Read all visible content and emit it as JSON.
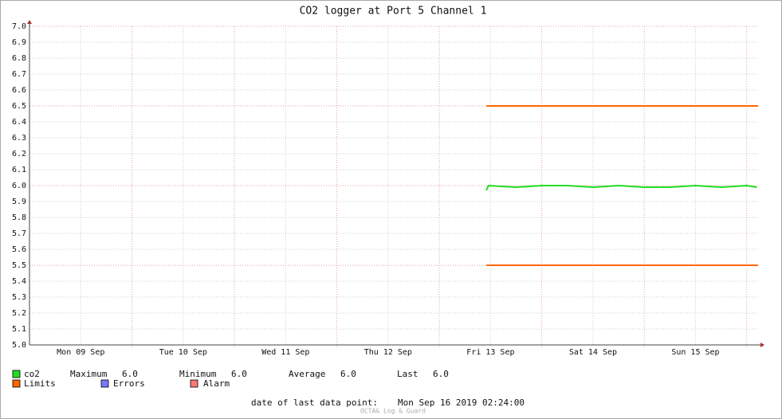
{
  "chart_data": {
    "type": "line",
    "title": "CO2 logger at Port 5 Channel 1",
    "xlim": [
      "2019-09-09T00:00",
      "2019-09-16T02:40"
    ],
    "xticks": [
      {
        "value": "2019-09-09T12:00",
        "label": "Mon 09 Sep"
      },
      {
        "value": "2019-09-10T12:00",
        "label": "Tue 10 Sep"
      },
      {
        "value": "2019-09-11T12:00",
        "label": "Wed 11 Sep"
      },
      {
        "value": "2019-09-12T12:00",
        "label": "Thu 12 Sep"
      },
      {
        "value": "2019-09-13T12:00",
        "label": "Fri 13 Sep"
      },
      {
        "value": "2019-09-14T12:00",
        "label": "Sat 14 Sep"
      },
      {
        "value": "2019-09-15T12:00",
        "label": "Sun 15 Sep"
      }
    ],
    "ylim": [
      5,
      7
    ],
    "yticks": [
      {
        "value": 5,
        "label": "5.0"
      },
      5.1,
      5.2,
      5.3,
      5.4,
      5.5,
      5.6,
      5.7,
      5.8,
      5.9,
      {
        "value": 6,
        "label": "6.0"
      },
      6.1,
      6.2,
      6.3,
      6.4,
      6.5,
      6.6,
      6.7,
      6.8,
      6.9,
      {
        "value": 7,
        "label": "7.0"
      }
    ],
    "grid": true,
    "series": [
      {
        "name": "co2",
        "color": "#22dd22",
        "x": [
          "2019-09-13T11:00",
          "2019-09-13T11:30",
          "2019-09-13T18:00",
          "2019-09-14T00:00",
          "2019-09-14T06:00",
          "2019-09-14T12:00",
          "2019-09-14T18:00",
          "2019-09-15T00:00",
          "2019-09-15T06:00",
          "2019-09-15T12:00",
          "2019-09-15T18:00",
          "2019-09-16T00:00",
          "2019-09-16T02:24"
        ],
        "values": [
          5.97,
          6.0,
          5.99,
          6.0,
          6.0,
          5.99,
          6.0,
          5.99,
          5.99,
          6.0,
          5.99,
          6.0,
          5.99
        ]
      }
    ],
    "limits": {
      "name": "Limits",
      "color": "#ff6600",
      "values": [
        6.5,
        5.5
      ]
    },
    "legend_extra": [
      {
        "name": "Errors",
        "color": "#7777ff"
      },
      {
        "name": "Alarm",
        "color": "#ff7777"
      }
    ],
    "legend_stats": {
      "labels": [
        "Maximum",
        "Minimum",
        "Average",
        "Last"
      ],
      "values": [
        6,
        6,
        6,
        6
      ],
      "value_labels": [
        "6.0",
        "6.0",
        "6.0",
        "6.0"
      ]
    },
    "footer_label": "date of last data point:",
    "footer_value": "Mon Sep 16 2019 02:24:00",
    "credit": "OCTA& Log & Guard"
  }
}
